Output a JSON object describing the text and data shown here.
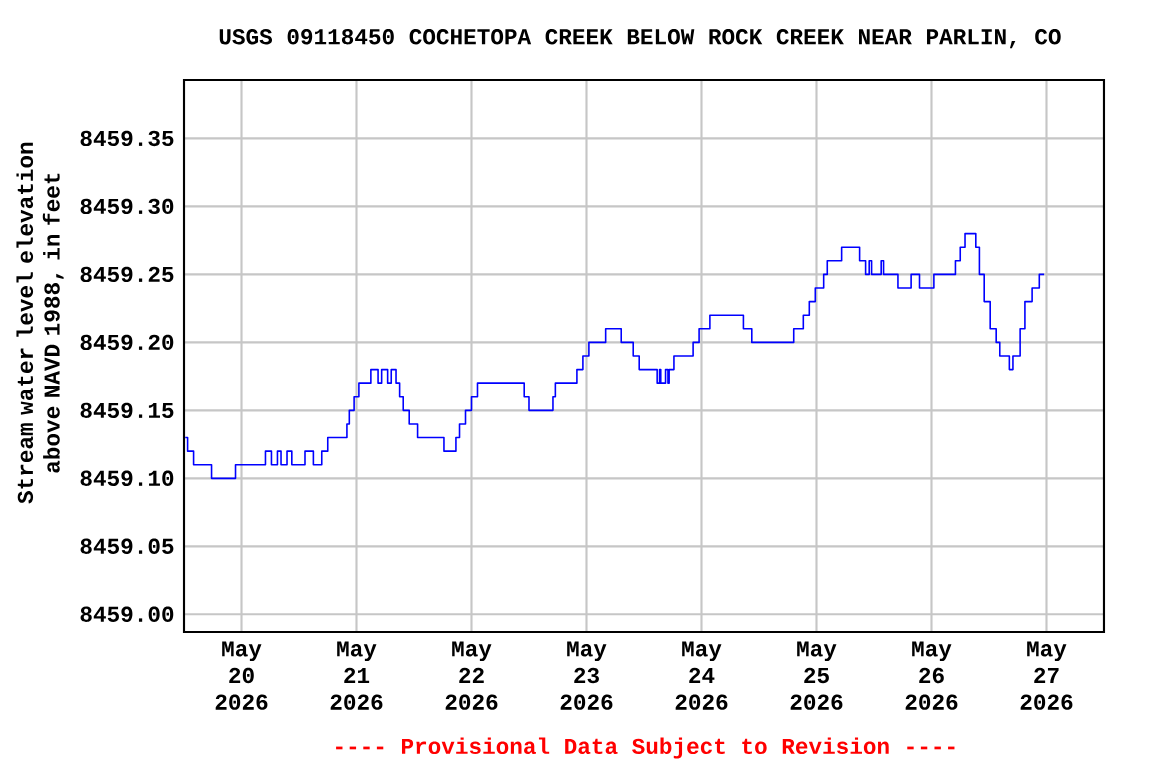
{
  "chart_data": {
    "type": "step",
    "title": "USGS 09118450 COCHETOPA CREEK BELOW ROCK CREEK NEAR PARLIN, CO",
    "ylabel": "Stream water level elevation above NAVD 1988, in feet",
    "annotations": [
      "---- Provisional Data Subject to Revision ----"
    ],
    "series": [
      {
        "color": "#0000ff",
        "x": [
          "2026-05-19T12:15",
          "2026-05-19T12:45",
          "2026-05-19T14:00",
          "2026-05-19T17:45",
          "2026-05-19T22:45",
          "2026-05-20T05:00",
          "2026-05-20T06:15",
          "2026-05-20T07:30",
          "2026-05-20T08:15",
          "2026-05-20T09:30",
          "2026-05-20T10:30",
          "2026-05-20T13:15",
          "2026-05-20T15:00",
          "2026-05-20T16:45",
          "2026-05-20T18:00",
          "2026-05-20T22:00",
          "2026-05-20T22:30",
          "2026-05-20T23:30",
          "2026-05-21T00:30",
          "2026-05-21T03:00",
          "2026-05-21T04:30",
          "2026-05-21T05:15",
          "2026-05-21T06:30",
          "2026-05-21T07:15",
          "2026-05-21T08:15",
          "2026-05-21T09:00",
          "2026-05-21T09:45",
          "2026-05-21T11:00",
          "2026-05-21T12:45",
          "2026-05-21T18:15",
          "2026-05-21T20:45",
          "2026-05-21T21:30",
          "2026-05-21T22:45",
          "2026-05-22T00:00",
          "2026-05-22T01:15",
          "2026-05-22T11:00",
          "2026-05-22T12:00",
          "2026-05-22T17:00",
          "2026-05-22T17:30",
          "2026-05-22T22:00",
          "2026-05-22T23:15",
          "2026-05-23T00:30",
          "2026-05-23T04:00",
          "2026-05-23T07:15",
          "2026-05-23T09:45",
          "2026-05-23T11:00",
          "2026-05-23T14:45",
          "2026-05-23T15:15",
          "2026-05-23T15:30",
          "2026-05-23T16:30",
          "2026-05-23T17:00",
          "2026-05-23T17:15",
          "2026-05-23T18:15",
          "2026-05-23T22:15",
          "2026-05-23T23:30",
          "2026-05-24T01:45",
          "2026-05-24T08:45",
          "2026-05-24T10:30",
          "2026-05-24T19:15",
          "2026-05-24T21:15",
          "2026-05-24T22:30",
          "2026-05-24T23:45",
          "2026-05-25T01:30",
          "2026-05-25T02:15",
          "2026-05-25T05:15",
          "2026-05-25T09:00",
          "2026-05-25T10:15",
          "2026-05-25T11:00",
          "2026-05-25T11:30",
          "2026-05-25T13:30",
          "2026-05-25T14:00",
          "2026-05-25T17:00",
          "2026-05-25T19:45",
          "2026-05-25T21:30",
          "2026-05-26T00:30",
          "2026-05-26T05:00",
          "2026-05-26T06:00",
          "2026-05-26T07:00",
          "2026-05-26T09:15",
          "2026-05-26T10:00",
          "2026-05-26T11:00",
          "2026-05-26T12:15",
          "2026-05-26T13:30",
          "2026-05-26T14:15",
          "2026-05-26T16:15",
          "2026-05-26T17:00",
          "2026-05-26T18:30",
          "2026-05-26T19:30",
          "2026-05-26T21:00",
          "2026-05-26T22:30",
          "2026-05-26T23:30"
        ],
        "values": [
          8459.13,
          8459.12,
          8459.11,
          8459.1,
          8459.11,
          8459.12,
          8459.11,
          8459.12,
          8459.11,
          8459.12,
          8459.11,
          8459.12,
          8459.11,
          8459.12,
          8459.13,
          8459.14,
          8459.15,
          8459.16,
          8459.17,
          8459.18,
          8459.17,
          8459.18,
          8459.17,
          8459.18,
          8459.17,
          8459.16,
          8459.15,
          8459.14,
          8459.13,
          8459.12,
          8459.13,
          8459.14,
          8459.15,
          8459.16,
          8459.17,
          8459.16,
          8459.15,
          8459.16,
          8459.17,
          8459.18,
          8459.19,
          8459.2,
          8459.21,
          8459.2,
          8459.19,
          8459.18,
          8459.17,
          8459.18,
          8459.17,
          8459.18,
          8459.17,
          8459.18,
          8459.19,
          8459.2,
          8459.21,
          8459.22,
          8459.21,
          8459.2,
          8459.21,
          8459.22,
          8459.23,
          8459.24,
          8459.25,
          8459.26,
          8459.27,
          8459.26,
          8459.25,
          8459.26,
          8459.25,
          8459.26,
          8459.25,
          8459.24,
          8459.25,
          8459.24,
          8459.25,
          8459.26,
          8459.27,
          8459.28,
          8459.27,
          8459.25,
          8459.23,
          8459.21,
          8459.2,
          8459.19,
          8459.18,
          8459.19,
          8459.21,
          8459.23,
          8459.24,
          8459.25,
          8459.25
        ]
      }
    ],
    "xlim": [
      "2026-05-19T12:00",
      "2026-05-27T12:00"
    ],
    "xticks": [
      {
        "value": "2026-05-20",
        "label": "May 20 2026"
      },
      {
        "value": "2026-05-21",
        "label": "May 21 2026"
      },
      {
        "value": "2026-05-22",
        "label": "May 22 2026"
      },
      {
        "value": "2026-05-23",
        "label": "May 23 2026"
      },
      {
        "value": "2026-05-24",
        "label": "May 24 2026"
      },
      {
        "value": "2026-05-25",
        "label": "May 25 2026"
      },
      {
        "value": "2026-05-26",
        "label": "May 26 2026"
      },
      {
        "value": "2026-05-27",
        "label": "May 27 2026"
      }
    ],
    "ylim": [
      8458.987,
      8459.393
    ],
    "yticks": [
      {
        "value": 8459.0,
        "label": "8459.00"
      },
      8459.05,
      {
        "value": 8459.1,
        "label": "8459.10"
      },
      8459.15,
      {
        "value": 8459.2,
        "label": "8459.20"
      },
      8459.25,
      {
        "value": 8459.3,
        "label": "8459.30"
      },
      8459.35
    ],
    "grid": true
  }
}
